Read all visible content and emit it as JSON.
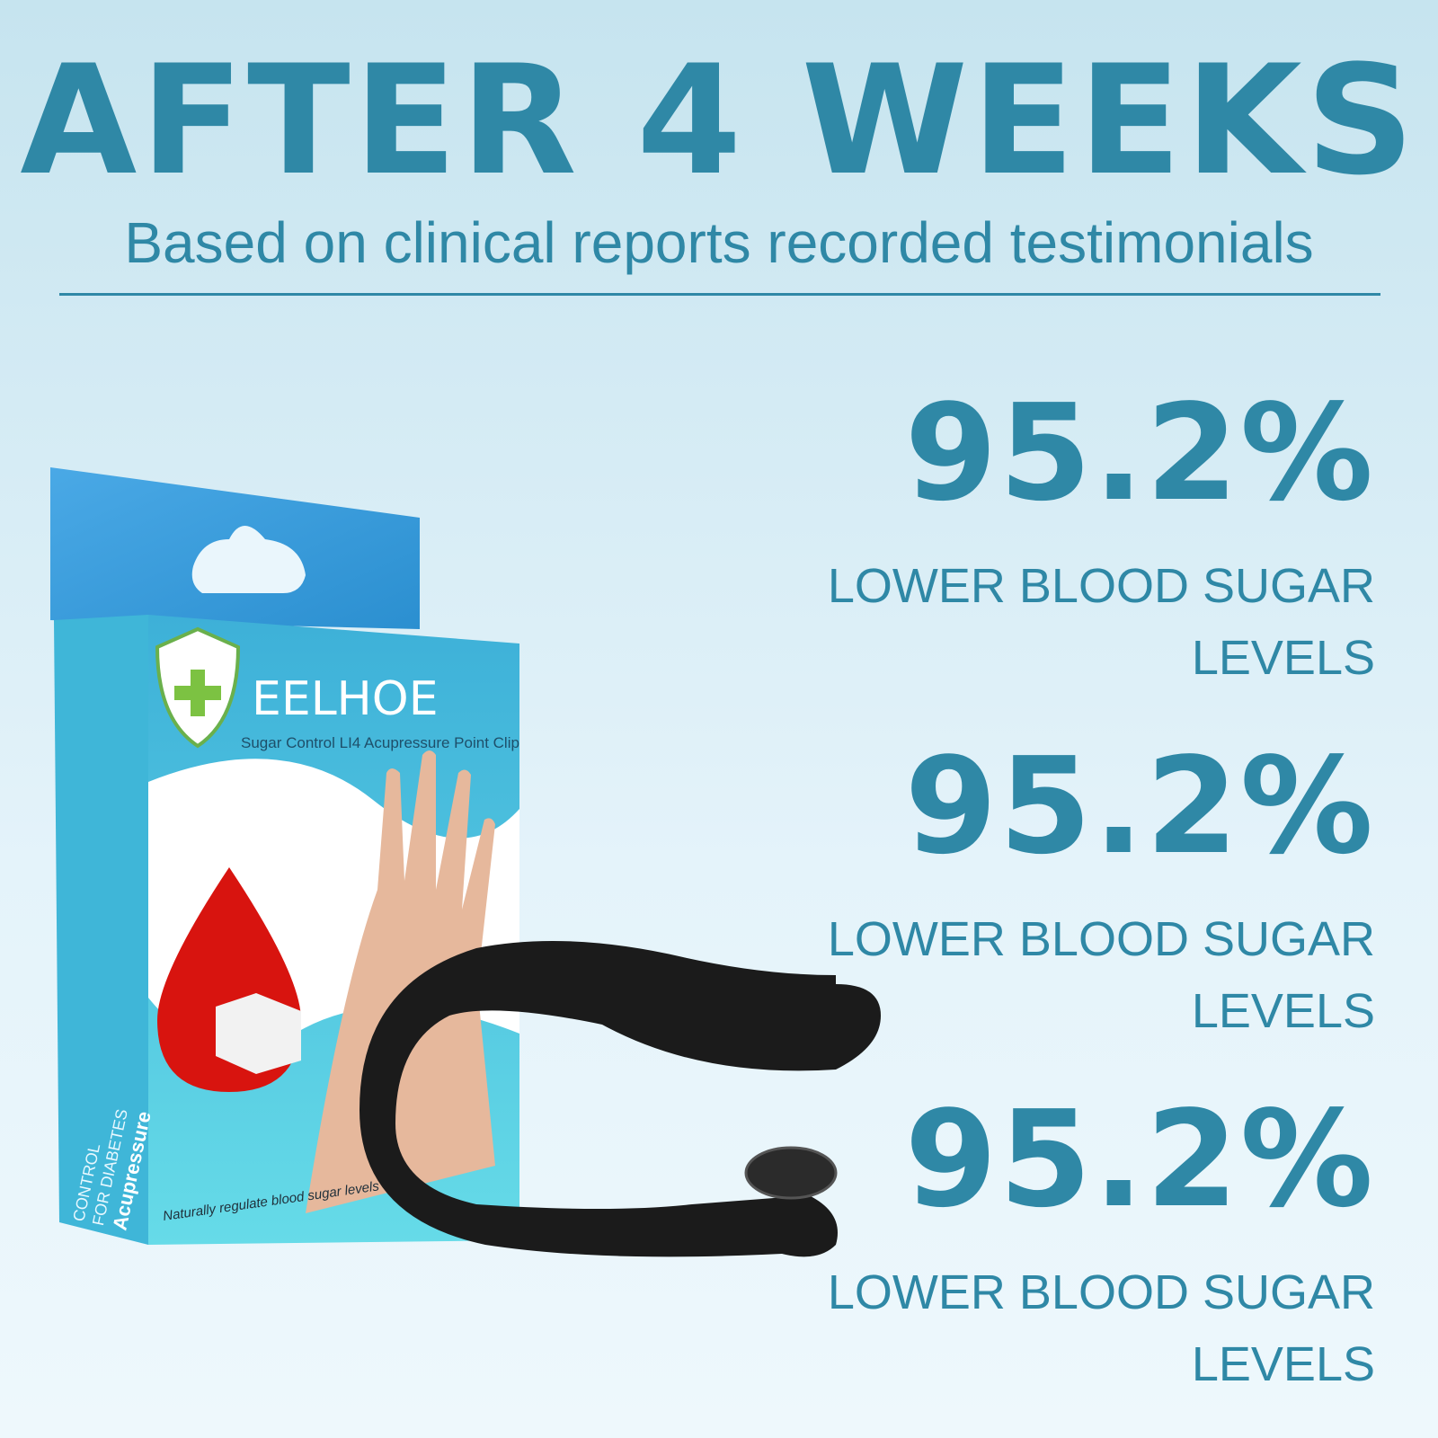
{
  "header": {
    "title": "AFTER 4 WEEKS",
    "subtitle": "Based on clinical reports recorded testimonials"
  },
  "stats": [
    {
      "value": "95.2%",
      "label": "LOWER BLOOD SUGAR LEVELS"
    },
    {
      "value": "95.2%",
      "label": "LOWER BLOOD SUGAR LEVELS"
    },
    {
      "value": "95.2%",
      "label": "LOWER BLOOD SUGAR LEVELS"
    }
  ],
  "product": {
    "brand": "EELHOE",
    "name": "Sugar Control  LI4 Acupressure Point Clip",
    "side_title": "Acupressure",
    "side_line1": "FOR DIABETES",
    "side_line2": "CONTROL",
    "tagline": "Naturally regulate blood sugar levels"
  }
}
